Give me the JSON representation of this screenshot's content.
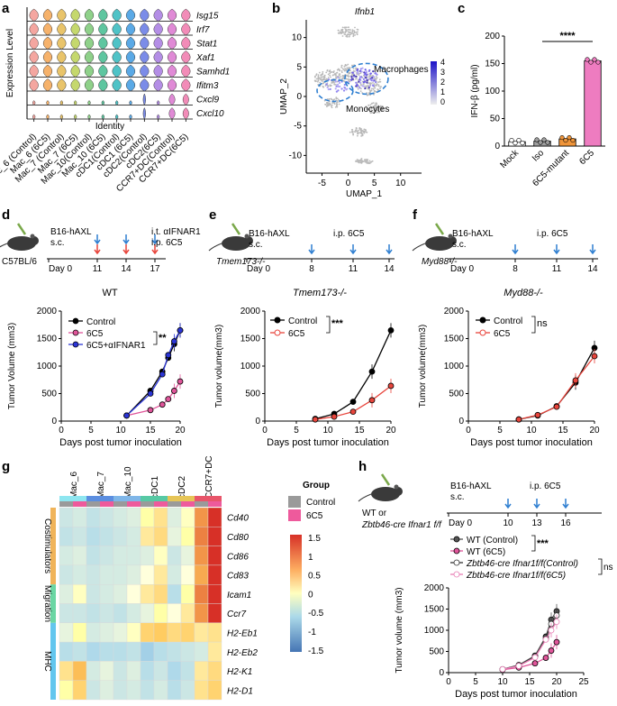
{
  "panels": {
    "a": {
      "label": "a",
      "ylabel": "Expression Level",
      "xlabel": "Identity",
      "genes": [
        "Isg15",
        "Irf7",
        "Stat1",
        "Xaf1",
        "Samhd1",
        "Ifitm3",
        "Cxcl9",
        "Cxcl10"
      ],
      "groups": [
        "Mac_6 (Control)",
        "Mac_6 (6C5)",
        "Mac_7 (Control)",
        "Mac_7 (6C5)",
        "Mac_10(Control)",
        "Mac_10 (6C5)",
        "cDC1(Control)",
        "cDC1 (6C5)",
        "cDC2(Control)",
        "cDC2(6C5)",
        "CCR7+DC(Control)",
        "CCR7+DC(6C5)"
      ],
      "colors": [
        "#f4a6a0",
        "#f6b26b",
        "#e9c46a",
        "#c5d86d",
        "#8fd18a",
        "#5ec6a0",
        "#4fc3c7",
        "#5aa9e6",
        "#7b8ce8",
        "#b48ee6",
        "#e08ad6",
        "#f28cb8"
      ]
    },
    "b": {
      "label": "b",
      "title": "Ifnb1",
      "xlabel": "UMAP_1",
      "ylabel": "UMAP_2",
      "xticks": [
        "-5",
        "0",
        "5",
        "10"
      ],
      "yticks": [
        "10",
        "5",
        "0",
        "-5",
        "-10"
      ],
      "annotations": [
        "Macrophages",
        "Monocytes"
      ],
      "colorbar_ticks": [
        "4",
        "3",
        "2",
        "1",
        "0"
      ]
    },
    "c": {
      "label": "c",
      "ylabel": "IFN-β (pg/ml)",
      "significance": "****",
      "chart_data": {
        "type": "bar",
        "categories": [
          "Mock",
          "Iso",
          "6C5-mutant",
          "6C5"
        ],
        "values": [
          8,
          9,
          13,
          155
        ],
        "colors": [
          "#ffffff",
          "#9e9e9e",
          "#f0953a",
          "#ee7cc0"
        ],
        "ylim": [
          0,
          200
        ],
        "yticks": [
          "0",
          "50",
          "100",
          "150",
          "200"
        ],
        "ylabel": "IFN-β (pg/ml)"
      }
    },
    "d": {
      "label": "d",
      "mouse": "C57BL/6",
      "timeline_top": [
        "B16-hAXL",
        "s.c."
      ],
      "timeline_right": [
        "i.t. αIFNAR1",
        "i.p. 6C5"
      ],
      "days": [
        "Day 0",
        "11",
        "14",
        "17"
      ],
      "title": "WT",
      "significance": "**",
      "chart_data": {
        "type": "line",
        "xlabel": "Days post tumor inoculation",
        "ylabel": "Tumor Volume (mm3)",
        "xlim": [
          0,
          20
        ],
        "ylim": [
          0,
          2000
        ],
        "xticks": [
          "0",
          "5",
          "10",
          "15",
          "20"
        ],
        "yticks": [
          "0",
          "500",
          "1000",
          "1500",
          "2000"
        ],
        "x": [
          11,
          15,
          17,
          18,
          19,
          20
        ],
        "series": [
          {
            "name": "Control",
            "values": [
              100,
              550,
              900,
              1150,
              1400,
              1650
            ],
            "color": "#000000"
          },
          {
            "name": "6C5",
            "values": [
              100,
              200,
              300,
              400,
              550,
              720
            ],
            "color": "#e0559a"
          },
          {
            "name": "6C5+αIFNAR1",
            "values": [
              100,
              500,
              850,
              1200,
              1450,
              1650
            ],
            "color": "#2b35d6"
          }
        ]
      }
    },
    "e": {
      "label": "e",
      "mouse": "Tmem173-/-",
      "timeline_top": [
        "B16-hAXL",
        "s.c."
      ],
      "timeline_right": [
        "i.p. 6C5"
      ],
      "days": [
        "Day 0",
        "8",
        "11",
        "14"
      ],
      "title": "Tmem173-/-",
      "significance": "***",
      "chart_data": {
        "type": "line",
        "xlabel": "Days post tumor inoculation",
        "ylabel": "Tumor volume(mm3)",
        "xlim": [
          0,
          20
        ],
        "ylim": [
          0,
          2000
        ],
        "xticks": [
          "0",
          "5",
          "10",
          "15",
          "20"
        ],
        "yticks": [
          "0",
          "500",
          "1000",
          "1500",
          "2000"
        ],
        "x": [
          8,
          11,
          14,
          17,
          20
        ],
        "series": [
          {
            "name": "Control",
            "values": [
              40,
              130,
              350,
              900,
              1650
            ],
            "color": "#000000"
          },
          {
            "name": "6C5",
            "values": [
              30,
              80,
              170,
              380,
              640
            ],
            "color": "#e8453c"
          }
        ]
      }
    },
    "f": {
      "label": "f",
      "mouse": "Myd88-/-",
      "timeline_top": [
        "B16-hAXL",
        "s.c."
      ],
      "timeline_right": [
        "i.p. 6C5"
      ],
      "days": [
        "Day 0",
        "8",
        "11",
        "14"
      ],
      "title": "Myd88-/-",
      "significance": "ns",
      "chart_data": {
        "type": "line",
        "xlabel": "Days post tumor inoculation",
        "ylabel": "Tumor volume(mm3)",
        "xlim": [
          0,
          20
        ],
        "ylim": [
          0,
          2000
        ],
        "xticks": [
          "0",
          "5",
          "10",
          "15",
          "20"
        ],
        "yticks": [
          "0",
          "500",
          "1000",
          "1500",
          "2000"
        ],
        "x": [
          8,
          11,
          14,
          17,
          20
        ],
        "series": [
          {
            "name": "Control",
            "values": [
              30,
              100,
              270,
              700,
              1330
            ],
            "color": "#000000"
          },
          {
            "name": "6C5",
            "values": [
              30,
              110,
              260,
              740,
              1180
            ],
            "color": "#e8453c"
          }
        ]
      }
    },
    "g": {
      "label": "g",
      "legend_title": "Group",
      "legend_items": [
        "Control",
        "6C5"
      ],
      "col_groups": [
        "Mac_6",
        "Mac_7",
        "Mac_10",
        "cDC1",
        "cDC2",
        "CCR7+DC"
      ],
      "row_groups": [
        "Costimulators",
        "Migration",
        "MHC"
      ],
      "row_labels": [
        "Cd40",
        "Cd80",
        "Cd86",
        "Cd83",
        "Icam1",
        "Ccr7",
        "H2-Eb1",
        "H2-Eb2",
        "H2-K1",
        "H2-D1"
      ],
      "colorbar_ticks": [
        "1.5",
        "1",
        "0.5",
        "0",
        "-0.5",
        "-1",
        "-1.5"
      ],
      "chart_data": {
        "type": "heatmap",
        "rows": [
          "Cd40",
          "Cd80",
          "Cd86",
          "Cd83",
          "Icam1",
          "Ccr7",
          "H2-Eb1",
          "H2-Eb2",
          "H2-K1",
          "H2-D1"
        ],
        "columns": [
          "Mac_6 Control",
          "Mac_6 6C5",
          "Mac_7 Control",
          "Mac_7 6C5",
          "Mac_10 Control",
          "Mac_10 6C5",
          "cDC1 Control",
          "cDC1 6C5",
          "cDC2 Control",
          "cDC2 6C5",
          "CCR7+DC Control",
          "CCR7+DC 6C5"
        ],
        "values": [
          [
            -0.4,
            -0.3,
            -0.5,
            -0.4,
            -0.3,
            -0.2,
            0.2,
            0.4,
            -0.2,
            0.1,
            1.0,
            1.6
          ],
          [
            -0.5,
            -0.4,
            -0.6,
            -0.5,
            -0.4,
            -0.3,
            0.3,
            0.5,
            -0.1,
            0.2,
            1.1,
            1.7
          ],
          [
            -0.3,
            -0.2,
            -0.5,
            -0.4,
            -0.3,
            -0.3,
            -0.2,
            0.1,
            -0.4,
            -0.1,
            1.0,
            1.6
          ],
          [
            -0.4,
            -0.3,
            -0.4,
            -0.3,
            -0.3,
            -0.2,
            0.0,
            0.3,
            -0.3,
            0.0,
            0.9,
            1.5
          ],
          [
            -0.2,
            0.1,
            -0.4,
            -0.3,
            -0.2,
            0.0,
            0.3,
            0.5,
            -0.6,
            0.2,
            1.1,
            1.7
          ],
          [
            -0.4,
            -0.4,
            -0.5,
            -0.4,
            -0.5,
            -0.3,
            -0.1,
            0.2,
            0.0,
            0.3,
            1.0,
            1.6
          ],
          [
            -0.1,
            0.2,
            -0.3,
            -0.2,
            -0.1,
            0.1,
            0.6,
            0.7,
            0.5,
            0.6,
            0.3,
            0.4
          ],
          [
            -0.6,
            -0.5,
            -0.7,
            -0.6,
            -0.6,
            -0.5,
            -0.8,
            -0.6,
            -0.5,
            -0.4,
            -0.3,
            0.3
          ],
          [
            0.4,
            0.8,
            -0.3,
            -0.1,
            -0.4,
            -0.2,
            -0.6,
            -0.4,
            -0.7,
            -0.5,
            0.3,
            0.5
          ],
          [
            0.2,
            0.6,
            -0.4,
            -0.2,
            -0.4,
            -0.3,
            -0.5,
            -0.3,
            -0.6,
            -0.4,
            0.4,
            0.6
          ]
        ],
        "range": [
          -1.5,
          1.5
        ]
      }
    },
    "h": {
      "label": "h",
      "mouse_line1": "WT or",
      "mouse_line2": "Zbtb46-cre Ifnar1 f/f",
      "timeline_top": [
        "B16-hAXL",
        "s.c."
      ],
      "timeline_right": [
        "i.p. 6C5"
      ],
      "days": [
        "Day 0",
        "10",
        "13",
        "16"
      ],
      "significance_1": "***",
      "significance_2": "ns",
      "chart_data": {
        "type": "line",
        "xlabel": "Days post tumor inoculation",
        "ylabel": "Tumor volume (mm3)",
        "xlim": [
          0,
          25
        ],
        "ylim": [
          0,
          2000
        ],
        "xticks": [
          "0",
          "5",
          "10",
          "15",
          "20",
          "25"
        ],
        "yticks": [
          "0",
          "500",
          "1000",
          "1500",
          "2000"
        ],
        "x": [
          10,
          13,
          16,
          18,
          19,
          20
        ],
        "series": [
          {
            "name": "WT (Control)",
            "values": [
              80,
              180,
              400,
              850,
              1250,
              1450
            ],
            "color": "#555555",
            "filled": true
          },
          {
            "name": "WT (6C5)",
            "values": [
              70,
              120,
              220,
              350,
              520,
              720
            ],
            "color": "#e0559a",
            "filled": true
          },
          {
            "name": "Zbtb46-cre Ifnar1f/f(Control)",
            "values": [
              80,
              170,
              380,
              800,
              1150,
              1350
            ],
            "color": "#333333",
            "filled": false
          },
          {
            "name": "Zbtb46-cre Ifnar1f/f(6C5)",
            "values": [
              80,
              160,
              360,
              780,
              1000,
              1200
            ],
            "color": "#e87fb5",
            "filled": false
          }
        ]
      }
    }
  }
}
